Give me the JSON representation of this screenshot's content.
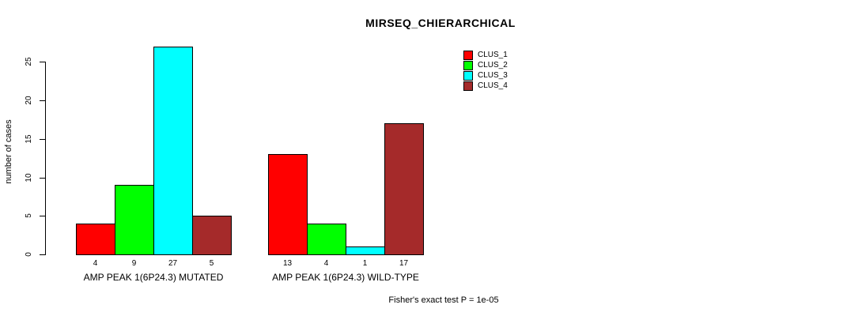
{
  "chart_data": {
    "type": "bar",
    "title": "MIRSEQ_CHIERARCHICAL",
    "ylabel": "number of cases",
    "ylim": [
      0,
      27
    ],
    "yticks": [
      0,
      5,
      10,
      15,
      20,
      25
    ],
    "grid": false,
    "legend_position": "top-right",
    "categories": [
      "AMP PEAK 1(6P24.3) MUTATED",
      "AMP PEAK 1(6P24.3) WILD-TYPE"
    ],
    "series": [
      {
        "name": "CLUS_1",
        "color": "#FF0000",
        "values": [
          4,
          13
        ]
      },
      {
        "name": "CLUS_2",
        "color": "#00FF00",
        "values": [
          9,
          4
        ]
      },
      {
        "name": "CLUS_3",
        "color": "#00FFFF",
        "values": [
          27,
          1
        ]
      },
      {
        "name": "CLUS_4",
        "color": "#A52A2A",
        "values": [
          5,
          17
        ]
      }
    ],
    "bar_value_labels": [
      [
        4,
        9,
        27,
        5
      ],
      [
        13,
        4,
        1,
        17
      ]
    ],
    "bar_outline": "#000000",
    "annotation": "Fisher's exact test P = 1e-05"
  }
}
